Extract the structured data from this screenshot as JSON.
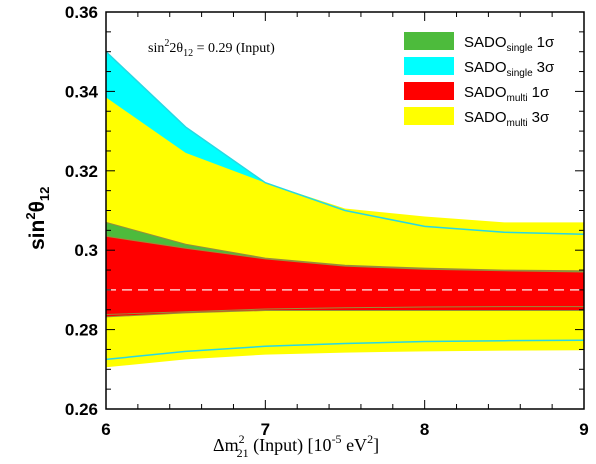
{
  "chart_data": {
    "type": "area",
    "annotation": {
      "pre": "sin",
      "sup": "2",
      "mid": "2θ",
      "sub": "12",
      "post": " = 0.29 (Input)"
    },
    "xlabel": {
      "pre": "Δm",
      "sup": "2",
      "sub": "21",
      "mid": " (Input) [10",
      "sup2": "-5",
      "mid2": " eV",
      "sup3": "2",
      "post": "]"
    },
    "ylabel": {
      "pre": "sin",
      "sup": "2",
      "mid": "θ",
      "sub": "12"
    },
    "xlim": [
      6,
      9
    ],
    "ylim": [
      0.26,
      0.36
    ],
    "x_ticks": [
      {
        "v": 6,
        "label": "6"
      },
      {
        "v": 7,
        "label": "7"
      },
      {
        "v": 8,
        "label": "8"
      },
      {
        "v": 9,
        "label": "9"
      }
    ],
    "y_ticks": [
      {
        "v": 0.26,
        "label": "0.26"
      },
      {
        "v": 0.28,
        "label": "0.28"
      },
      {
        "v": 0.3,
        "label": "0.3"
      },
      {
        "v": 0.32,
        "label": "0.32"
      },
      {
        "v": 0.34,
        "label": "0.34"
      },
      {
        "v": 0.36,
        "label": "0.36"
      }
    ],
    "input_value": 0.29,
    "x": [
      6,
      6.5,
      7,
      7.5,
      8,
      8.5,
      9
    ],
    "series": [
      {
        "key": "single3",
        "base": "SADO",
        "sub": "single",
        "level": "3σ",
        "color": "#00ffff",
        "upper": [
          0.35,
          0.331,
          0.317,
          0.31,
          0.306,
          0.3045,
          0.304
        ],
        "lower": [
          0.2725,
          0.2745,
          0.2758,
          0.2765,
          0.277,
          0.2772,
          0.2773
        ]
      },
      {
        "key": "multi3",
        "base": "SADO",
        "sub": "multi",
        "level": "3σ",
        "color": "#ffff00",
        "upper": [
          0.3385,
          0.3245,
          0.317,
          0.3105,
          0.3085,
          0.307,
          0.307
        ],
        "lower": [
          0.2705,
          0.2725,
          0.2737,
          0.2742,
          0.2745,
          0.2747,
          0.2748
        ]
      },
      {
        "key": "single1",
        "base": "SADO",
        "sub": "single",
        "level": "1σ",
        "color": "#4dbb3c",
        "upper": [
          0.307,
          0.3015,
          0.298,
          0.2962,
          0.2955,
          0.295,
          0.2948
        ],
        "lower": [
          0.2838,
          0.2845,
          0.2852,
          0.2855,
          0.2857,
          0.2858,
          0.2858
        ]
      },
      {
        "key": "multi1",
        "base": "SADO",
        "sub": "multi",
        "level": "1σ",
        "color": "#ff0000",
        "upper": [
          0.3035,
          0.3005,
          0.2978,
          0.296,
          0.2952,
          0.2948,
          0.2945
        ],
        "lower": [
          0.2832,
          0.2842,
          0.2848,
          0.2848,
          0.2848,
          0.2848,
          0.2848
        ]
      }
    ],
    "legend_order": [
      "single1",
      "single3",
      "multi1",
      "multi3"
    ],
    "legend_position": "top-right",
    "grid": false
  }
}
